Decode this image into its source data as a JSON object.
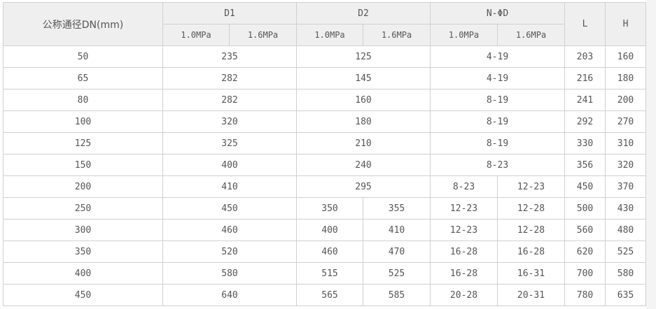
{
  "header": {
    "dn": "公称通径DN(mm)",
    "d1": "D1",
    "d2": "D2",
    "nd": "N-ΦD",
    "l": "L",
    "h": "H",
    "p1": "1.0MPa",
    "p2": "1.6MPa"
  },
  "rows": [
    {
      "dn": "50",
      "d1": "235",
      "d2": "125",
      "nd": "4-19",
      "l": "203",
      "h": "160"
    },
    {
      "dn": "65",
      "d1": "282",
      "d2": "145",
      "nd": "4-19",
      "l": "216",
      "h": "180"
    },
    {
      "dn": "80",
      "d1": "282",
      "d2": "160",
      "nd": "8-19",
      "l": "241",
      "h": "200"
    },
    {
      "dn": "100",
      "d1": "320",
      "d2": "180",
      "nd": "8-19",
      "l": "292",
      "h": "270"
    },
    {
      "dn": "125",
      "d1": "325",
      "d2": "210",
      "nd": "8-19",
      "l": "330",
      "h": "310"
    },
    {
      "dn": "150",
      "d1": "400",
      "d2": "240",
      "nd": "8-23",
      "l": "356",
      "h": "320"
    },
    {
      "dn": "200",
      "d1": "410",
      "d2": "295",
      "nd_a": "8-23",
      "nd_b": "12-23",
      "l": "450",
      "h": "370"
    },
    {
      "dn": "250",
      "d1": "450",
      "d2_a": "350",
      "d2_b": "355",
      "nd_a": "12-23",
      "nd_b": "12-28",
      "l": "500",
      "h": "430"
    },
    {
      "dn": "300",
      "d1": "460",
      "d2_a": "400",
      "d2_b": "410",
      "nd_a": "12-23",
      "nd_b": "12-28",
      "l": "560",
      "h": "480"
    },
    {
      "dn": "350",
      "d1": "520",
      "d2_a": "460",
      "d2_b": "470",
      "nd_a": "16-28",
      "nd_b": "16-28",
      "l": "620",
      "h": "525"
    },
    {
      "dn": "400",
      "d1": "580",
      "d2_a": "515",
      "d2_b": "525",
      "nd_a": "16-28",
      "nd_b": "16-31",
      "l": "700",
      "h": "580"
    },
    {
      "dn": "450",
      "d1": "640",
      "d2_a": "565",
      "d2_b": "585",
      "nd_a": "20-28",
      "nd_b": "20-31",
      "l": "780",
      "h": "635"
    }
  ]
}
